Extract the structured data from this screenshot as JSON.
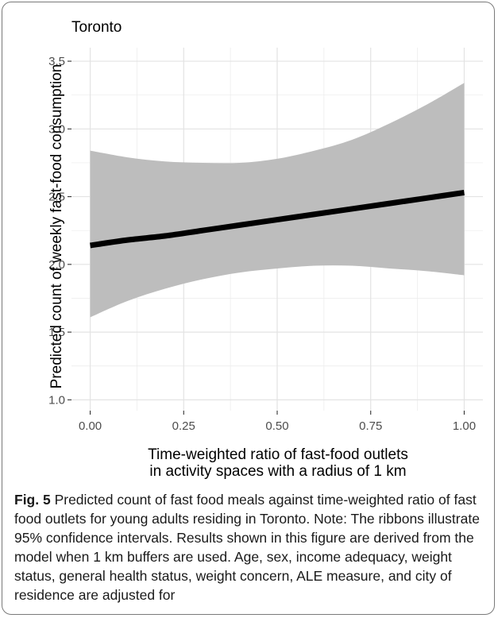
{
  "chart_data": {
    "type": "line",
    "title": "Toronto",
    "xlabel_lines": [
      "Time-weighted ratio of fast-food outlets",
      "in activity spaces with a radius of 1 km"
    ],
    "ylabel": "Predicted count of weekly fast-food consumption",
    "xlim": [
      -0.05,
      1.05
    ],
    "ylim": [
      0.92,
      3.6
    ],
    "x_ticks": [
      0.0,
      0.25,
      0.5,
      0.75,
      1.0
    ],
    "x_tick_labels": [
      "0.00",
      "0.25",
      "0.50",
      "0.75",
      "1.00"
    ],
    "y_ticks": [
      1.0,
      1.5,
      2.0,
      2.5,
      3.0,
      3.5
    ],
    "y_tick_labels": [
      "1.0",
      "1.5",
      "2.0",
      "2.5",
      "3.0",
      "3.5"
    ],
    "grid": true,
    "series": [
      {
        "x": [
          0.0,
          0.1,
          0.2,
          0.3,
          0.4,
          0.5,
          0.6,
          0.7,
          0.8,
          0.9,
          1.0
        ],
        "fit": [
          2.14,
          2.18,
          2.21,
          2.25,
          2.29,
          2.33,
          2.37,
          2.41,
          2.45,
          2.49,
          2.53
        ],
        "lower": [
          1.61,
          1.73,
          1.82,
          1.89,
          1.94,
          1.97,
          1.99,
          1.99,
          1.97,
          1.95,
          1.92
        ],
        "upper": [
          2.84,
          2.79,
          2.76,
          2.75,
          2.75,
          2.78,
          2.84,
          2.92,
          3.04,
          3.18,
          3.34
        ]
      }
    ],
    "colors": {
      "ribbon": "#bdbdbd",
      "line": "#000000",
      "grid": "#ebebeb",
      "axis_text": "#4d4d4d"
    }
  },
  "caption": {
    "label": "Fig. 5",
    "text": " Predicted count of fast food meals against time-weighted ratio of fast food outlets for young adults residing in Toronto. Note: The ribbons illustrate 95% confidence intervals. Results shown in this figure are derived from the model when 1 km buffers are used. Age, sex, income adequacy, weight status, general health status, weight concern, ALE measure, and city of residence are adjusted for"
  }
}
